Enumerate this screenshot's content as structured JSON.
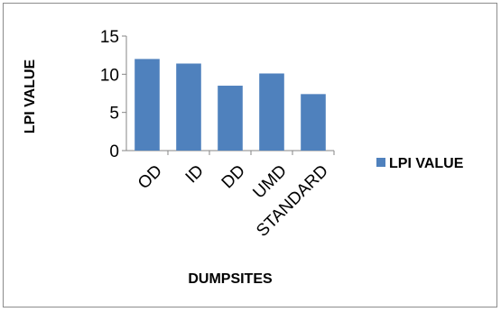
{
  "chart_data": {
    "type": "bar",
    "categories": [
      "OD",
      "ID",
      "DD",
      "UMD",
      "STANDARD"
    ],
    "series": [
      {
        "name": "LPI VALUE",
        "values": [
          12.0,
          11.4,
          8.5,
          10.1,
          7.4
        ],
        "color": "#4f81bd"
      }
    ],
    "title": "",
    "xlabel": "DUMPSITES",
    "ylabel": "LPI VALUE",
    "ylim": [
      0,
      15
    ],
    "yticks": [
      "0",
      "5",
      "10",
      "15"
    ],
    "grid": false,
    "legend_position": "right"
  }
}
